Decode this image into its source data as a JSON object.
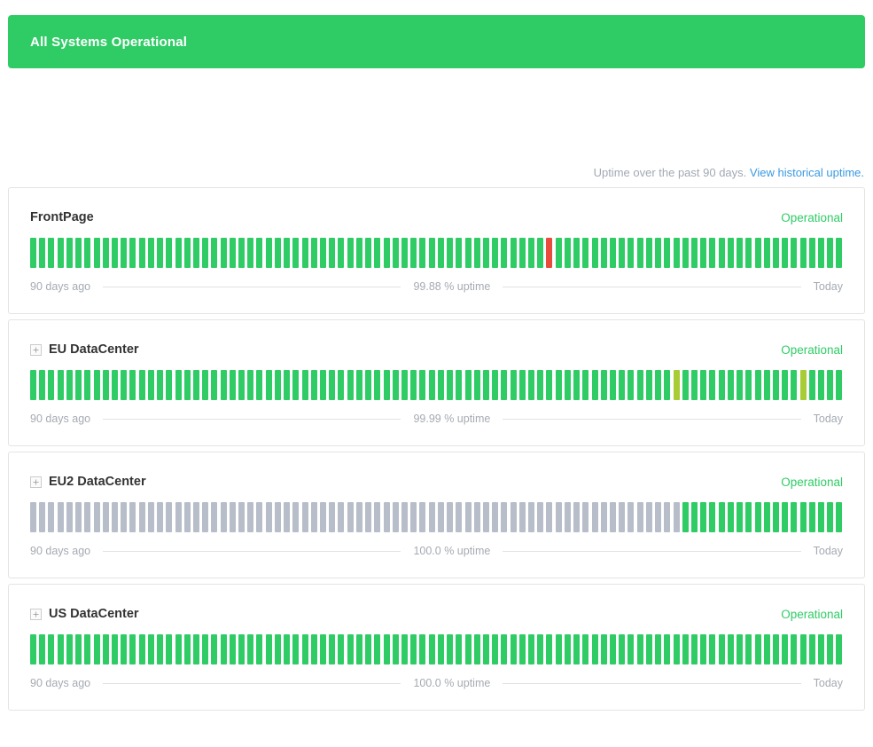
{
  "banner": {
    "text": "All Systems Operational"
  },
  "uptime_header": {
    "prefix": "Uptime over the past 90 days.",
    "link": "View historical uptime."
  },
  "timeline": {
    "start_label": "90 days ago",
    "end_label": "Today"
  },
  "colors": {
    "banner_bg": "#2fcc66",
    "operational": "#2fcc66",
    "major_outage": "#e74c3c",
    "degraded": "#a8cc36",
    "no_data": "#b7bec9",
    "link": "#3b9ae1"
  },
  "services": [
    {
      "name": "FrontPage",
      "status": "Operational",
      "uptime": "99.88 % uptime",
      "expandable": false,
      "bars": [
        {
          "color": "operational",
          "count": 57
        },
        {
          "color": "major_outage",
          "count": 1
        },
        {
          "color": "operational",
          "count": 32
        }
      ]
    },
    {
      "name": "EU DataCenter",
      "status": "Operational",
      "uptime": "99.99 % uptime",
      "expandable": true,
      "bars": [
        {
          "color": "operational",
          "count": 71
        },
        {
          "color": "degraded",
          "count": 1
        },
        {
          "color": "operational",
          "count": 13
        },
        {
          "color": "degraded",
          "count": 1
        },
        {
          "color": "operational",
          "count": 4
        }
      ]
    },
    {
      "name": "EU2 DataCenter",
      "status": "Operational",
      "uptime": "100.0 % uptime",
      "expandable": true,
      "bars": [
        {
          "color": "no_data",
          "count": 72
        },
        {
          "color": "operational",
          "count": 18
        }
      ]
    },
    {
      "name": "US DataCenter",
      "status": "Operational",
      "uptime": "100.0 % uptime",
      "expandable": true,
      "bars": [
        {
          "color": "operational",
          "count": 90
        }
      ]
    }
  ]
}
